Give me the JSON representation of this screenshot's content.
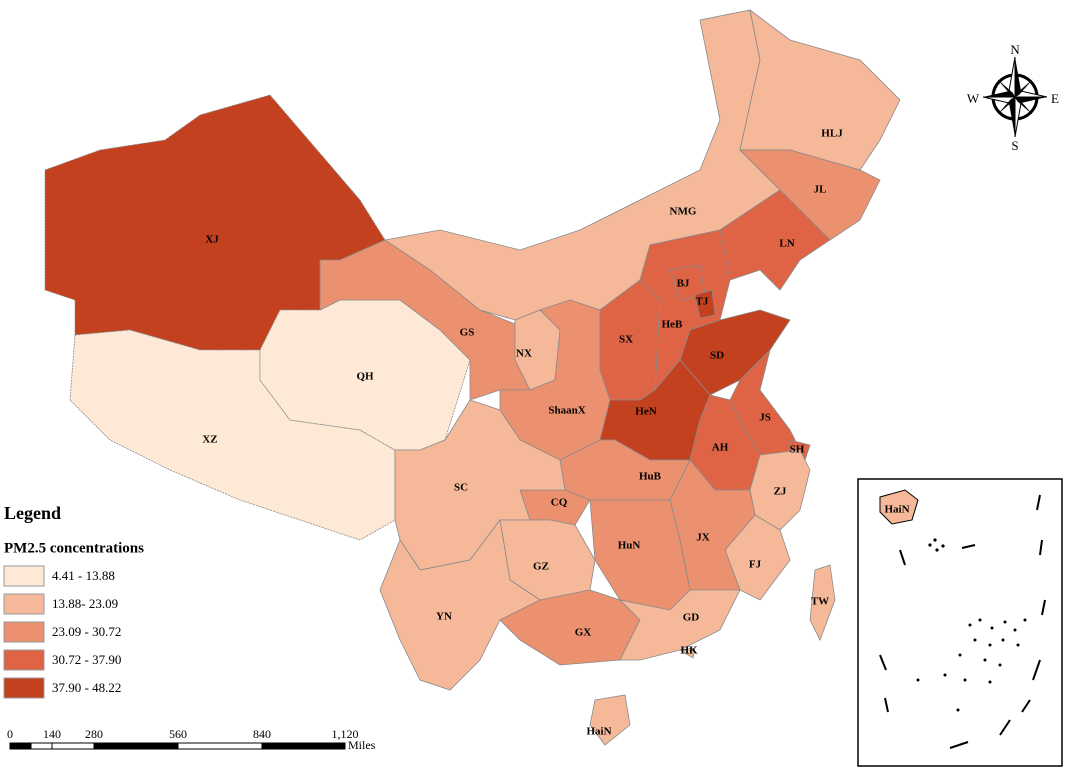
{
  "map": {
    "regions": [
      {
        "label": "XJ",
        "color": "#c4411f"
      },
      {
        "label": "XZ",
        "color": "#fde9d5"
      },
      {
        "label": "QH",
        "color": "#fde9d5"
      },
      {
        "label": "GS",
        "color": "#ec9170"
      },
      {
        "label": "NMG",
        "color": "#f5b99a"
      },
      {
        "label": "HLJ",
        "color": "#f5b99a"
      },
      {
        "label": "JL",
        "color": "#ec9170"
      },
      {
        "label": "LN",
        "color": "#de6445"
      },
      {
        "label": "NX",
        "color": "#f5b99a"
      },
      {
        "label": "ShaanX",
        "color": "#ec9170"
      },
      {
        "label": "SX",
        "color": "#de6445"
      },
      {
        "label": "HeB",
        "color": "#de6445"
      },
      {
        "label": "BJ",
        "color": "#de6445"
      },
      {
        "label": "TJ",
        "color": "#c4411f"
      },
      {
        "label": "SD",
        "color": "#c4411f"
      },
      {
        "label": "HeN",
        "color": "#c4411f"
      },
      {
        "label": "JS",
        "color": "#de6445"
      },
      {
        "label": "AH",
        "color": "#de6445"
      },
      {
        "label": "SH",
        "color": "#de6445"
      },
      {
        "label": "ZJ",
        "color": "#f5b99a"
      },
      {
        "label": "FJ",
        "color": "#f5b99a"
      },
      {
        "label": "JX",
        "color": "#ec9170"
      },
      {
        "label": "HuB",
        "color": "#ec9170"
      },
      {
        "label": "HuN",
        "color": "#ec9170"
      },
      {
        "label": "CQ",
        "color": "#ec9170"
      },
      {
        "label": "SC",
        "color": "#f5b99a"
      },
      {
        "label": "GZ",
        "color": "#f5b99a"
      },
      {
        "label": "YN",
        "color": "#f5b99a"
      },
      {
        "label": "GX",
        "color": "#ec9170"
      },
      {
        "label": "GD",
        "color": "#f5b99a"
      },
      {
        "label": "HK",
        "color": "#f5b99a"
      },
      {
        "label": "HaiN",
        "color": "#f5b99a"
      },
      {
        "label": "TW",
        "color": "#f5b99a"
      }
    ],
    "legend": {
      "title": "Legend",
      "subtitle": "PM2.5 concentrations",
      "items": [
        {
          "label": "4.41 - 13.88",
          "color": "#fde9d5"
        },
        {
          "label": "13.88- 23.09",
          "color": "#f5b99a"
        },
        {
          "label": "23.09 - 30.72",
          "color": "#ec9170"
        },
        {
          "label": "30.72 - 37.90",
          "color": "#de6445"
        },
        {
          "label": "37.90 - 48.22",
          "color": "#c4411f"
        }
      ]
    },
    "scale_bar": {
      "ticks": [
        "0",
        "140",
        "280",
        "560",
        "840",
        "1,120"
      ],
      "unit": "Miles"
    },
    "compass": {
      "n": "N",
      "e": "E",
      "s": "S",
      "w": "W"
    },
    "inset": {
      "label": "HaiN"
    }
  }
}
